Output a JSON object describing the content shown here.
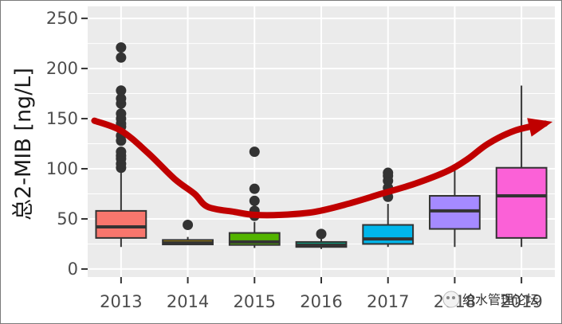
{
  "chart_data": {
    "type": "box",
    "categories": [
      "2013",
      "2014",
      "2015",
      "2016",
      "2017",
      "2018",
      "2019"
    ],
    "ylabel": "总2-MIB [ng/L]",
    "xlabel": "",
    "ylim": [
      -8,
      262
    ],
    "yticks": [
      0,
      50,
      100,
      150,
      200,
      250
    ],
    "grid": true,
    "legend": "none",
    "panel_color": "#ebebeb",
    "trend_color": "#c00000",
    "boxes": [
      {
        "year": "2013",
        "min": 22,
        "q1": 31,
        "median": 42,
        "q3": 58,
        "max": 96,
        "color": "#f8766d",
        "outliers": [
          101,
          105,
          110,
          113,
          117,
          128,
          133,
          142,
          145,
          150,
          155,
          165,
          170,
          178,
          211,
          221
        ]
      },
      {
        "year": "2014",
        "min": 24,
        "q1": 24.5,
        "median": 26,
        "q3": 29,
        "max": 32,
        "color": "#c49a00",
        "outliers": [
          44
        ]
      },
      {
        "year": "2015",
        "min": 21,
        "q1": 24,
        "median": 27,
        "q3": 36,
        "max": 47,
        "color": "#53b400",
        "outliers": [
          53,
          58,
          68,
          80,
          117
        ]
      },
      {
        "year": "2016",
        "min": 20,
        "q1": 22,
        "median": 24,
        "q3": 27,
        "max": 30,
        "color": "#00c094",
        "outliers": [
          35
        ]
      },
      {
        "year": "2017",
        "min": 22,
        "q1": 25,
        "median": 30,
        "q3": 44,
        "max": 65,
        "color": "#00b6eb",
        "outliers": [
          72,
          81,
          88,
          93,
          96
        ]
      },
      {
        "year": "2018",
        "min": 22,
        "q1": 40,
        "median": 58,
        "q3": 73,
        "max": 100,
        "color": "#a58aff",
        "outliers": []
      },
      {
        "year": "2019",
        "min": 22,
        "q1": 31,
        "median": 73,
        "q3": 101,
        "max": 183,
        "color": "#fb61d7",
        "outliers": []
      }
    ],
    "trend": [
      [
        0.6,
        148
      ],
      [
        1.0,
        138
      ],
      [
        1.4,
        116
      ],
      [
        1.8,
        90
      ],
      [
        2.1,
        75
      ],
      [
        2.3,
        62
      ],
      [
        2.7,
        57
      ],
      [
        3.0,
        54
      ],
      [
        3.4,
        54
      ],
      [
        3.9,
        57
      ],
      [
        4.4,
        65
      ],
      [
        4.9,
        75
      ],
      [
        5.4,
        85
      ],
      [
        5.9,
        98
      ],
      [
        6.2,
        110
      ],
      [
        6.5,
        125
      ],
      [
        6.9,
        138
      ],
      [
        7.35,
        145
      ]
    ]
  },
  "watermark": {
    "text": "给水管理论坛"
  }
}
